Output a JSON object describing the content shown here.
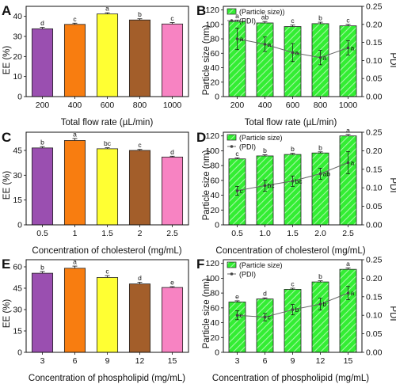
{
  "colors": {
    "purple": "#9a4fb0",
    "orange": "#f87d10",
    "yellow": "#ffff33",
    "brown": "#a35e2a",
    "pink": "#f783c2",
    "green": "#33ee33",
    "pdi_line": "#666666"
  },
  "chart_data": [
    {
      "panel": "A",
      "type": "bar",
      "xlabel": "Total flow rate (µL/min)",
      "ylabel": "EE (%)",
      "categories": [
        "200",
        "400",
        "600",
        "800",
        "1000"
      ],
      "ylim": [
        0,
        45
      ],
      "yticks": [
        0,
        10,
        20,
        30,
        40
      ],
      "series": [
        {
          "values": [
            33.8,
            36,
            41.2,
            38.2,
            36.2
          ],
          "errors": [
            0.7,
            0.6,
            0.6,
            0.6,
            0.7
          ]
        }
      ],
      "letters": [
        "d",
        "c",
        "a",
        "b",
        "c"
      ],
      "bar_colors": [
        "purple",
        "orange",
        "yellow",
        "brown",
        "pink"
      ]
    },
    {
      "panel": "B",
      "type": "bar+line",
      "xlabel": "Total flow rate (µL/min)",
      "ylabel": "Particle size (nm)",
      "y2label": "PDI",
      "categories": [
        "200",
        "400",
        "600",
        "800",
        "1000"
      ],
      "ylim": [
        0,
        125
      ],
      "yticks": [
        0,
        20,
        40,
        60,
        80,
        100,
        120
      ],
      "y2lim": [
        0,
        0.25
      ],
      "y2ticks": [
        "0.00",
        "0.05",
        "0.10",
        "0.15",
        "0.20",
        "0.25"
      ],
      "legend": [
        "(Particle size))",
        "(PDI)"
      ],
      "series": [
        {
          "name": "(Particle size))",
          "values": [
            104,
            102,
            97,
            101,
            98
          ],
          "errors": [
            2,
            2,
            2,
            2,
            2
          ],
          "letters": [
            "a",
            "ab",
            "c",
            "b",
            "c"
          ]
        },
        {
          "name": "(PDI)",
          "values": [
            0.16,
            0.145,
            0.122,
            0.108,
            0.135
          ],
          "errors": [
            0.03,
            0.02,
            0.025,
            0.02,
            0.02
          ],
          "letters": [
            "a",
            "a",
            "a",
            "a",
            "a"
          ]
        }
      ]
    },
    {
      "panel": "C",
      "type": "bar",
      "xlabel": "Concentration of cholesterol (mg/mL)",
      "ylabel": "EE (%)",
      "categories": [
        "0.5",
        "1",
        "1.5",
        "2",
        "2.5"
      ],
      "ylim": [
        0,
        56
      ],
      "yticks": [
        0,
        15,
        30,
        45
      ],
      "series": [
        {
          "values": [
            46.5,
            51,
            46,
            45,
            41
          ],
          "errors": [
            0.8,
            1.2,
            0.6,
            0.6,
            0.5
          ]
        }
      ],
      "letters": [
        "b",
        "a",
        "bc",
        "c",
        "d"
      ],
      "bar_colors": [
        "purple",
        "orange",
        "yellow",
        "brown",
        "pink"
      ]
    },
    {
      "panel": "D",
      "type": "bar+line",
      "xlabel": "Concentration of cholesterol (mg/mL)",
      "ylabel": "Particle size (nm)",
      "y2label": "PDI",
      "categories": [
        "0.5",
        "1.0",
        "1.5",
        "2.0",
        "2.5"
      ],
      "ylim": [
        0,
        125
      ],
      "yticks": [
        0,
        20,
        40,
        60,
        80,
        100,
        120
      ],
      "y2lim": [
        0,
        0.25
      ],
      "y2ticks": [
        "0.00",
        "0.05",
        "0.10",
        "0.15",
        "0.20",
        "0.25"
      ],
      "legend": [
        "(Particle size)",
        "(PDI)"
      ],
      "series": [
        {
          "name": "(Particle size)",
          "values": [
            89,
            93,
            95,
            97,
            120
          ],
          "errors": [
            1.5,
            1.5,
            1.5,
            1.5,
            2
          ],
          "letters": [
            "c",
            "b",
            "b",
            "b",
            "a"
          ]
        },
        {
          "name": "(PDI)",
          "values": [
            0.092,
            0.106,
            0.118,
            0.138,
            0.168
          ],
          "errors": [
            0.012,
            0.015,
            0.014,
            0.015,
            0.03
          ],
          "letters": [
            "c",
            "bc",
            "bc",
            "ab",
            "a"
          ]
        }
      ]
    },
    {
      "panel": "E",
      "type": "bar",
      "xlabel": "Concentration of phospholipid (mg/mL)",
      "ylabel": "EE (%)",
      "categories": [
        "3",
        "6",
        "9",
        "12",
        "15"
      ],
      "ylim": [
        0,
        65
      ],
      "yticks": [
        0,
        15,
        30,
        45,
        60
      ],
      "series": [
        {
          "values": [
            55.5,
            59,
            52.5,
            48,
            45.5
          ],
          "errors": [
            1.2,
            1.5,
            1.3,
            1.2,
            0.6
          ]
        }
      ],
      "letters": [
        "b",
        "a",
        "c",
        "d",
        "e"
      ],
      "bar_colors": [
        "purple",
        "orange",
        "yellow",
        "brown",
        "pink"
      ]
    },
    {
      "panel": "F",
      "type": "bar+line",
      "xlabel": "Concentration of phospholipid (mg/mL)",
      "ylabel": "Particle size (nm)",
      "y2label": "PDI",
      "categories": [
        "3",
        "6",
        "9",
        "12",
        "15"
      ],
      "ylim": [
        0,
        125
      ],
      "yticks": [
        0,
        20,
        40,
        60,
        80,
        100,
        120
      ],
      "y2lim": [
        0,
        0.25
      ],
      "y2ticks": [
        "0.00",
        "0.05",
        "0.10",
        "0.15",
        "0.20",
        "0.25"
      ],
      "legend": [
        "(Particle size)",
        "(PDI)"
      ],
      "series": [
        {
          "name": "(Particle size)",
          "values": [
            68,
            72,
            85,
            95,
            112
          ],
          "errors": [
            1.5,
            1.5,
            1.5,
            1.5,
            2
          ],
          "letters": [
            "e",
            "d",
            "c",
            "b",
            "a"
          ]
        },
        {
          "name": "(PDI)",
          "values": [
            0.1,
            0.095,
            0.115,
            0.13,
            0.16
          ],
          "errors": [
            0.012,
            0.01,
            0.014,
            0.016,
            0.018
          ],
          "letters": [
            "c",
            "c",
            "b",
            "b",
            "a"
          ]
        }
      ]
    }
  ]
}
